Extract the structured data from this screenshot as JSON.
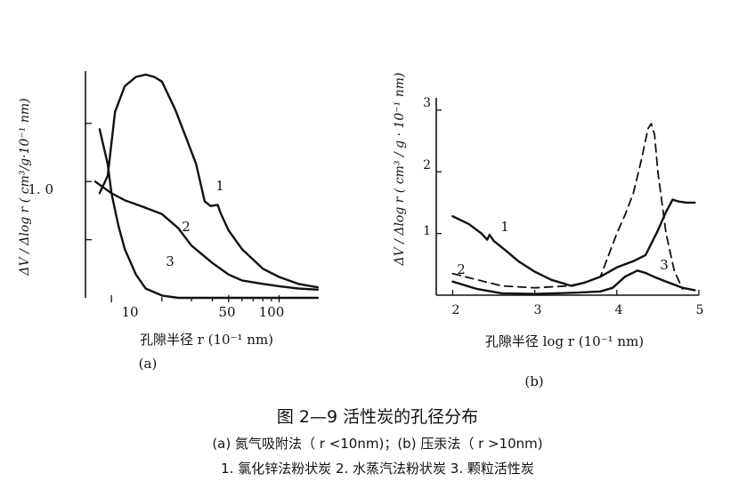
{
  "figure_caption": {
    "title": "图 2—9   活性炭的孔径分布",
    "methods": "(a) 氮气吸附法（ r <10nm)；(b) 压汞法（ r >10nm)",
    "legend": "1. 氯化锌法粉状炭    2. 水蒸汽法粉状炭    3. 颗粒活性炭"
  },
  "chart_data": [
    {
      "type": "line",
      "panel_label": "(a)",
      "xlabel": "孔隙半径  r (10⁻¹ nm)",
      "ylabel": "ΔV / Δlog r ( cm³/g·10⁻¹ nm)",
      "x_scale": "log",
      "xlim": [
        7,
        190
      ],
      "ylim": [
        0,
        1.95
      ],
      "x_ticks": [
        {
          "value": 10,
          "label": "10"
        },
        {
          "value": 50,
          "label": "50"
        },
        {
          "value": 100,
          "label": "100"
        }
      ],
      "x_minor_ticks": [
        20,
        30,
        40,
        60,
        70,
        80,
        90
      ],
      "y_ticks": [
        {
          "value": 0.5,
          "label": ""
        },
        {
          "value": 1.0,
          "label": "1. 0"
        },
        {
          "value": 1.5,
          "label": ""
        }
      ],
      "series": [
        {
          "name": "1",
          "line": "solid",
          "x": [
            8.5,
            9.5,
            10.5,
            12,
            14,
            16,
            18,
            20,
            24,
            28,
            32,
            36,
            39,
            43,
            45,
            50,
            60,
            80,
            100,
            130,
            170
          ],
          "y": [
            0.9,
            1.05,
            1.6,
            1.82,
            1.9,
            1.92,
            1.9,
            1.86,
            1.62,
            1.37,
            1.15,
            0.83,
            0.79,
            0.8,
            0.72,
            0.58,
            0.42,
            0.25,
            0.18,
            0.12,
            0.09
          ]
        },
        {
          "name": "2",
          "line": "solid",
          "x": [
            8,
            10,
            12,
            15,
            20,
            25,
            30,
            40,
            50,
            60,
            80,
            100,
            130,
            170
          ],
          "y": [
            1.0,
            0.9,
            0.84,
            0.79,
            0.72,
            0.6,
            0.45,
            0.3,
            0.2,
            0.15,
            0.12,
            0.1,
            0.08,
            0.07
          ]
        },
        {
          "name": "3",
          "line": "solid",
          "x": [
            8.5,
            9.5,
            10,
            11,
            12,
            14,
            16,
            20,
            25,
            30,
            40,
            60,
            80,
            100,
            150,
            170
          ],
          "y": [
            1.45,
            1.15,
            0.9,
            0.62,
            0.42,
            0.2,
            0.08,
            0.02,
            0.0,
            0.0,
            0.0,
            0.0,
            0.0,
            0.0,
            0.0,
            0.0
          ]
        }
      ]
    },
    {
      "type": "line",
      "panel_label": "(b)",
      "xlabel": "孔隙半径  log r  (10⁻¹ nm)",
      "ylabel": "ΔV / Δlog r ( cm³ / g · 10⁻¹ nm)",
      "xlim": [
        1.8,
        5.0
      ],
      "ylim": [
        0,
        3.2
      ],
      "x_ticks": [
        {
          "value": 2,
          "label": "2"
        },
        {
          "value": 3,
          "label": "3"
        },
        {
          "value": 4,
          "label": "4"
        },
        {
          "value": 5,
          "label": "5"
        }
      ],
      "y_ticks": [
        {
          "value": 1,
          "label": "1"
        },
        {
          "value": 2,
          "label": "2"
        },
        {
          "value": 3,
          "label": "3"
        }
      ],
      "series": [
        {
          "name": "1",
          "line": "solid",
          "x": [
            2.0,
            2.2,
            2.35,
            2.42,
            2.45,
            2.5,
            2.65,
            2.8,
            3.0,
            3.2,
            3.45,
            3.6,
            3.8,
            4.0,
            4.2,
            4.35,
            4.5,
            4.6,
            4.68,
            4.75,
            4.85,
            4.95
          ],
          "y": [
            1.28,
            1.15,
            1.0,
            0.9,
            0.98,
            0.88,
            0.72,
            0.55,
            0.38,
            0.25,
            0.15,
            0.2,
            0.3,
            0.45,
            0.55,
            0.65,
            1.05,
            1.35,
            1.55,
            1.52,
            1.5,
            1.5
          ]
        },
        {
          "name": "2",
          "line": "dashed",
          "x": [
            2.0,
            2.3,
            2.6,
            3.0,
            3.4,
            3.6,
            3.8,
            3.9,
            4.0,
            4.1,
            4.2,
            4.3,
            4.38,
            4.42,
            4.46,
            4.5,
            4.6,
            4.7,
            4.8
          ],
          "y": [
            0.35,
            0.25,
            0.15,
            0.12,
            0.15,
            0.2,
            0.3,
            0.65,
            1.0,
            1.3,
            1.65,
            2.2,
            2.7,
            2.78,
            2.6,
            2.0,
            1.0,
            0.4,
            0.1
          ]
        },
        {
          "name": "3",
          "line": "solid",
          "x": [
            2.0,
            2.3,
            2.6,
            3.0,
            3.5,
            3.8,
            3.95,
            4.1,
            4.25,
            4.35,
            4.45,
            4.6,
            4.8,
            4.95
          ],
          "y": [
            0.22,
            0.1,
            0.03,
            0.02,
            0.04,
            0.06,
            0.12,
            0.3,
            0.4,
            0.36,
            0.3,
            0.22,
            0.12,
            0.08
          ]
        }
      ]
    }
  ]
}
